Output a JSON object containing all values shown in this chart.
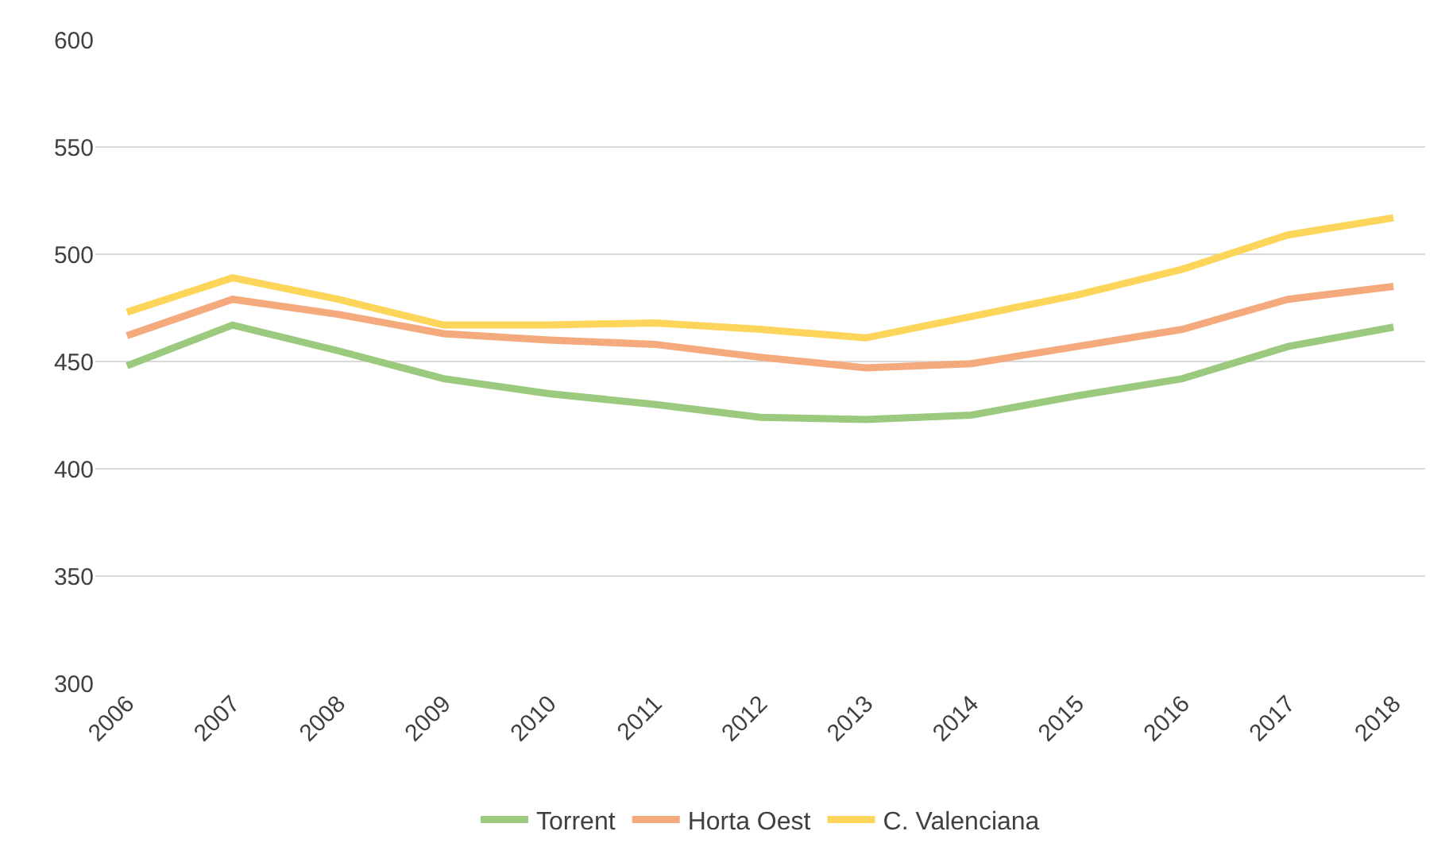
{
  "chart_data": {
    "type": "line",
    "categories": [
      "2006",
      "2007",
      "2008",
      "2009",
      "2010",
      "2011",
      "2012",
      "2013",
      "2014",
      "2015",
      "2016",
      "2017",
      "2018"
    ],
    "series": [
      {
        "name": "Torrent",
        "color": "#9bc97e",
        "values": [
          448,
          467,
          455,
          442,
          435,
          430,
          424,
          423,
          425,
          434,
          442,
          457,
          466
        ]
      },
      {
        "name": "Horta Oest",
        "color": "#f4aa7c",
        "values": [
          462,
          479,
          472,
          463,
          460,
          458,
          452,
          447,
          449,
          457,
          465,
          479,
          485
        ]
      },
      {
        "name": "C. Valenciana",
        "color": "#fdd55a",
        "values": [
          473,
          489,
          479,
          467,
          467,
          468,
          465,
          461,
          471,
          481,
          493,
          509,
          517
        ]
      }
    ],
    "ylim": [
      300,
      600
    ],
    "yticks": [
      300,
      350,
      400,
      450,
      500,
      550,
      600
    ],
    "grid": "y",
    "legend": "bottom",
    "marker": "none",
    "line_style": "solid"
  }
}
